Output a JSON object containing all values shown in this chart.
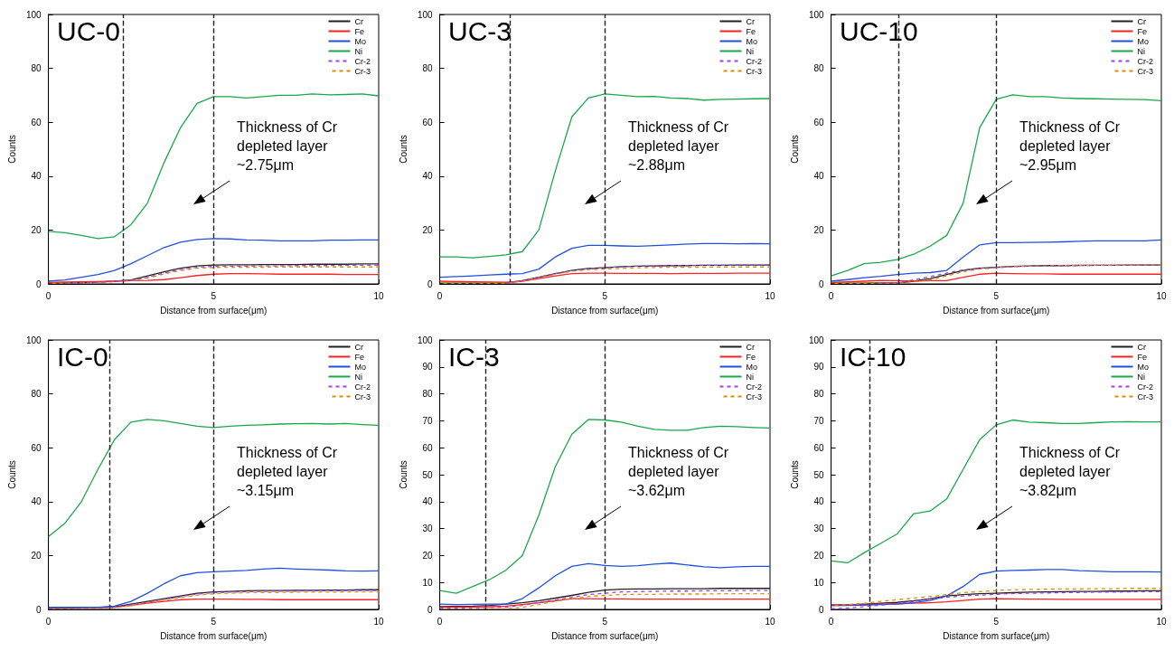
{
  "chart_data": [
    {
      "type": "line",
      "title": "UC-0",
      "xlabel": "Distance from surface(μm)",
      "ylabel": "Counts",
      "xlim": [
        0,
        10
      ],
      "xticks": [
        0,
        5,
        10
      ],
      "ylim": [
        0,
        100
      ],
      "yticks": [
        0,
        20,
        40,
        60,
        80,
        100
      ],
      "grid": false,
      "legend": "top right",
      "marker": "none",
      "line_style": "solid",
      "x": [
        0,
        0.5,
        1,
        1.5,
        2,
        2.5,
        3,
        3.5,
        4,
        4.5,
        5,
        5.5,
        6,
        6.5,
        7,
        7.5,
        8,
        8.5,
        9,
        9.5,
        10
      ],
      "series": [
        {
          "name": "Cr",
          "color": "#222222",
          "values": [
            0.3,
            0.4,
            0.5,
            0.7,
            1,
            1.5,
            3,
            4.5,
            5.8,
            6.7,
            7,
            7.1,
            7.1,
            7.2,
            7.2,
            7.2,
            7.3,
            7.3,
            7.3,
            7.4,
            7.4
          ]
        },
        {
          "name": "Fe",
          "color": "#ff2020",
          "values": [
            0.5,
            0.7,
            0.8,
            0.9,
            1,
            1.2,
            1.3,
            1.6,
            2.3,
            3.1,
            3.6,
            3.8,
            3.8,
            3.7,
            3.6,
            3.6,
            3.6,
            3.6,
            3.5,
            3.5,
            3.5
          ]
        },
        {
          "name": "Mo",
          "color": "#2050e0",
          "values": [
            1,
            1.5,
            2.5,
            3.5,
            5,
            7.5,
            10.5,
            13.5,
            15.5,
            16.5,
            16.8,
            16.7,
            16.3,
            16.2,
            16,
            16,
            16,
            16.2,
            16.2,
            16.3,
            16.3
          ]
        },
        {
          "name": "Ni",
          "color": "#1aa84a",
          "values": [
            19.5,
            19,
            18,
            16.8,
            17.5,
            22,
            30,
            45,
            58,
            67,
            69.5,
            69.5,
            69,
            69.5,
            70,
            70,
            70.5,
            70.2,
            70.3,
            70.5,
            69.8
          ]
        },
        {
          "name": "Cr-2",
          "color": "#a040f0",
          "line_style": "dashed",
          "values": [
            null,
            0.4,
            0.5,
            0.6,
            0.9,
            1.3,
            2.5,
            4,
            5.3,
            6.2,
            6.5,
            6.6,
            6.6,
            6.7,
            6.7,
            6.8,
            6.8,
            6.8,
            6.9,
            6.9,
            6.9
          ]
        },
        {
          "name": "Cr-3",
          "color": "#d89000",
          "line_style": "dashed",
          "values": [
            0.2,
            0.3,
            0.4,
            0.5,
            0.8,
            1.2,
            2.2,
            3.7,
            5,
            5.8,
            6.1,
            6.2,
            6.2,
            6.2,
            6.3,
            6.3,
            6.3,
            6.3,
            6.3,
            6.3,
            6.3
          ]
        }
      ],
      "ref_lines": [
        {
          "axis": "x",
          "value": 2.25,
          "color": "#222222",
          "line_style": "dashed"
        },
        {
          "axis": "x",
          "value": 5,
          "color": "#222222",
          "line_style": "dashed"
        }
      ],
      "annotations": [
        "Thickness of Cr\ndepleted layer\n~2.75μm"
      ]
    },
    {
      "type": "line",
      "title": "UC-3",
      "xlabel": "Distance from surface(μm)",
      "ylabel": "Counts",
      "xlim": [
        0,
        10
      ],
      "xticks": [
        0,
        5,
        10
      ],
      "ylim": [
        0,
        100
      ],
      "yticks": [
        0,
        20,
        40,
        60,
        80,
        100
      ],
      "grid": false,
      "legend": "top right",
      "marker": "none",
      "line_style": "solid",
      "x": [
        0,
        0.5,
        1,
        1.5,
        2,
        2.5,
        3,
        3.5,
        4,
        4.5,
        5,
        5.5,
        6,
        6.5,
        7,
        7.5,
        8,
        8.5,
        9,
        9.5,
        10
      ],
      "series": [
        {
          "name": "Cr",
          "color": "#222222",
          "values": [
            0.3,
            0.3,
            0.3,
            0.3,
            0.3,
            1.2,
            2.5,
            3.8,
            5,
            5.7,
            6,
            6.4,
            6.6,
            6.7,
            6.8,
            6.8,
            6.9,
            6.9,
            7,
            7,
            7
          ]
        },
        {
          "name": "Fe",
          "color": "#ff2020",
          "values": [
            1,
            0.9,
            0.8,
            0.7,
            0.6,
            1,
            2,
            3,
            3.8,
            4,
            4,
            3.9,
            3.9,
            3.9,
            3.8,
            3.9,
            3.9,
            3.9,
            4,
            4,
            4
          ]
        },
        {
          "name": "Mo",
          "color": "#2050e0",
          "values": [
            2.5,
            2.7,
            3,
            3.3,
            3.6,
            3.8,
            5.5,
            10,
            13.2,
            14.3,
            14.3,
            14.1,
            14,
            14.2,
            14.5,
            14.8,
            15,
            15,
            14.9,
            15,
            14.9
          ]
        },
        {
          "name": "Ni",
          "color": "#1aa84a",
          "values": [
            10,
            10,
            9.7,
            10.2,
            10.8,
            12,
            20,
            42,
            62,
            69,
            70.5,
            70,
            69.5,
            69.6,
            69,
            68.8,
            68.2,
            68.5,
            68.6,
            68.7,
            68.8
          ]
        },
        {
          "name": "Cr-2",
          "color": "#a040f0",
          "line_style": "dashed",
          "values": [
            null,
            null,
            null,
            null,
            0.3,
            1.2,
            2.5,
            3.8,
            5,
            5.7,
            6,
            6.4,
            6.6,
            6.7,
            6.8,
            6.8,
            6.9,
            6.9,
            7,
            7,
            7
          ]
        },
        {
          "name": "Cr-3",
          "color": "#d89000",
          "line_style": "dashed",
          "values": [
            0.2,
            0.2,
            0.2,
            0.2,
            0.2,
            1,
            2.3,
            3.6,
            4.7,
            5.3,
            5.5,
            5.8,
            6,
            6.1,
            6.2,
            6.2,
            6.2,
            6.3,
            6.3,
            6.3,
            6.3
          ]
        }
      ],
      "ref_lines": [
        {
          "axis": "x",
          "value": 2.12,
          "color": "#222222",
          "line_style": "dashed"
        },
        {
          "axis": "x",
          "value": 5,
          "color": "#222222",
          "line_style": "dashed"
        }
      ],
      "annotations": [
        "Thickness of Cr\ndepleted layer\n~2.88μm"
      ]
    },
    {
      "type": "line",
      "title": "UC-10",
      "xlabel": "Distance from surface(μm)",
      "ylabel": "Counts",
      "xlim": [
        0,
        10
      ],
      "xticks": [
        0,
        5,
        10
      ],
      "ylim": [
        0,
        100
      ],
      "yticks": [
        0,
        20,
        40,
        60,
        80,
        100
      ],
      "grid": false,
      "legend": "top right",
      "marker": "none",
      "line_style": "solid",
      "x": [
        0,
        0.5,
        1,
        1.5,
        2,
        2.5,
        3,
        3.5,
        4,
        4.5,
        5,
        5.5,
        6,
        6.5,
        7,
        7.5,
        8,
        8.5,
        9,
        9.5,
        10
      ],
      "series": [
        {
          "name": "Cr",
          "color": "#222222",
          "values": [
            0.3,
            0.3,
            0.3,
            0.4,
            0.4,
            1,
            2,
            3.5,
            5,
            5.8,
            6.2,
            6.5,
            6.7,
            6.8,
            6.8,
            6.9,
            6.9,
            6.9,
            7,
            7,
            7
          ]
        },
        {
          "name": "Fe",
          "color": "#ff2020",
          "values": [
            0.5,
            0.8,
            1,
            1.3,
            1.2,
            1,
            1.2,
            1.2,
            2.5,
            3.6,
            4,
            3.8,
            3.7,
            3.7,
            3.6,
            3.6,
            3.6,
            3.6,
            3.6,
            3.6,
            3.6
          ]
        },
        {
          "name": "Mo",
          "color": "#2050e0",
          "values": [
            1,
            1.6,
            2.3,
            2.8,
            3.5,
            4,
            4.2,
            5,
            10,
            14.5,
            15.3,
            15.3,
            15.4,
            15.5,
            15.6,
            15.8,
            16,
            16,
            16,
            16,
            16.3
          ]
        },
        {
          "name": "Ni",
          "color": "#1aa84a",
          "values": [
            3,
            5,
            7.5,
            8,
            9,
            11,
            14,
            18,
            30,
            58,
            68.5,
            70.2,
            69.5,
            69.5,
            69,
            68.8,
            68.7,
            68.6,
            68.5,
            68.4,
            68
          ]
        },
        {
          "name": "Cr-2",
          "color": "#a040f0",
          "line_style": "dashed",
          "values": [
            null,
            null,
            null,
            0.4,
            0.5,
            1.5,
            2.7,
            4,
            5.2,
            5.8,
            6.1,
            6.4,
            6.6,
            6.7,
            6.8,
            6.8,
            6.9,
            6.9,
            6.9,
            7,
            7
          ]
        },
        {
          "name": "Cr-3",
          "color": "#d89000",
          "line_style": "dashed",
          "values": [
            0.2,
            0.2,
            0.2,
            0.3,
            0.3,
            0.8,
            1.5,
            3,
            4.5,
            5.5,
            6,
            6.4,
            6.6,
            6.7,
            6.8,
            6.8,
            6.9,
            6.9,
            6.9,
            7,
            7
          ]
        }
      ],
      "ref_lines": [
        {
          "axis": "x",
          "value": 2.05,
          "color": "#222222",
          "line_style": "dashed"
        },
        {
          "axis": "x",
          "value": 5,
          "color": "#222222",
          "line_style": "dashed"
        }
      ],
      "annotations": [
        "Thickness of Cr\ndepleted layer\n~2.95μm"
      ]
    },
    {
      "type": "line",
      "title": "IC-0",
      "xlabel": "Distance from surface(μm)",
      "ylabel": "Counts",
      "xlim": [
        0,
        10
      ],
      "xticks": [
        0,
        5,
        10
      ],
      "ylim": [
        0,
        100
      ],
      "yticks": [
        0,
        20,
        40,
        60,
        80,
        100
      ],
      "grid": false,
      "legend": "top right",
      "marker": "none",
      "line_style": "solid",
      "x": [
        0,
        0.5,
        1,
        1.5,
        2,
        2.5,
        3,
        3.5,
        4,
        4.5,
        5,
        5.5,
        6,
        6.5,
        7,
        7.5,
        8,
        8.5,
        9,
        9.5,
        10
      ],
      "series": [
        {
          "name": "Cr",
          "color": "#222222",
          "values": [
            0.5,
            0.5,
            0.6,
            0.6,
            1,
            2,
            3,
            4,
            5,
            6,
            6.5,
            6.7,
            6.9,
            7,
            7,
            7.1,
            7.1,
            7.2,
            7.2,
            7.3,
            7.3
          ]
        },
        {
          "name": "Fe",
          "color": "#ff2020",
          "values": [
            null,
            null,
            null,
            null,
            0.8,
            1.5,
            2.3,
            3,
            3.6,
            3.8,
            3.8,
            3.8,
            3.7,
            3.7,
            3.6,
            3.6,
            3.6,
            3.6,
            3.6,
            3.6,
            3.6
          ]
        },
        {
          "name": "Mo",
          "color": "#2050e0",
          "values": [
            0.8,
            0.8,
            0.8,
            0.8,
            1.2,
            3,
            6,
            9.5,
            12.5,
            13.6,
            14,
            14.2,
            14.5,
            15,
            15.3,
            15,
            14.8,
            14.6,
            14.3,
            14.2,
            14.3
          ]
        },
        {
          "name": "Ni",
          "color": "#1aa84a",
          "values": [
            27,
            32,
            40,
            52,
            63,
            69.5,
            70.5,
            70,
            69,
            68,
            67.5,
            68,
            68.3,
            68.5,
            68.8,
            68.9,
            69,
            68.8,
            69,
            68.6,
            68.3
          ]
        },
        {
          "name": "Cr-2",
          "color": "#a040f0",
          "line_style": "dashed",
          "values": [
            0.4,
            0.4,
            0.4,
            0.5,
            0.8,
            1.7,
            2.7,
            3.7,
            4.7,
            5.7,
            6.2,
            6.4,
            6.6,
            6.7,
            6.8,
            6.8,
            6.9,
            6.9,
            7,
            7,
            7
          ]
        },
        {
          "name": "Cr-3",
          "color": "#d89000",
          "line_style": "dashed",
          "values": [
            0.3,
            0.3,
            0.3,
            0.4,
            0.6,
            1.4,
            2.4,
            3.4,
            4.4,
            5.3,
            5.8,
            6,
            6.2,
            6.3,
            6.3,
            6.4,
            6.4,
            6.4,
            6.5,
            6.5,
            6.5
          ]
        }
      ],
      "ref_lines": [
        {
          "axis": "x",
          "value": 1.85,
          "color": "#222222",
          "line_style": "dashed"
        },
        {
          "axis": "x",
          "value": 5,
          "color": "#222222",
          "line_style": "dashed"
        }
      ],
      "annotations": [
        "Thickness of Cr\ndepleted layer\n~3.15μm"
      ]
    },
    {
      "type": "line",
      "title": "IC-3",
      "xlabel": "Distance from surface(μm)",
      "ylabel": "Counts",
      "xlim": [
        0,
        10
      ],
      "xticks": [
        0,
        5,
        10
      ],
      "ylim": [
        0,
        100
      ],
      "yticks": [
        0,
        10,
        20,
        30,
        40,
        50,
        60,
        70,
        80,
        90,
        100
      ],
      "grid": false,
      "legend": "top right",
      "marker": "none",
      "line_style": "solid",
      "x": [
        0,
        0.5,
        1,
        1.5,
        2,
        2.5,
        3,
        3.5,
        4,
        4.5,
        5,
        5.5,
        6,
        6.5,
        7,
        7.5,
        8,
        8.5,
        9,
        9.5,
        10
      ],
      "series": [
        {
          "name": "Cr",
          "color": "#222222",
          "values": [
            1,
            1.1,
            1.2,
            1.5,
            2,
            2.5,
            3.2,
            4.2,
            5.2,
            6.3,
            7.2,
            7.5,
            7.6,
            7.6,
            7.7,
            7.7,
            7.7,
            7.8,
            7.8,
            7.8,
            7.8
          ]
        },
        {
          "name": "Fe",
          "color": "#ff2020",
          "values": [
            0.8,
            0.9,
            0.9,
            1,
            1.2,
            1.8,
            2.5,
            3.2,
            4,
            4,
            3.9,
            3.9,
            3.8,
            3.8,
            3.8,
            3.8,
            3.8,
            3.8,
            3.8,
            3.8,
            3.8
          ]
        },
        {
          "name": "Mo",
          "color": "#2050e0",
          "values": [
            2,
            1.8,
            1.9,
            2,
            2,
            4,
            8,
            12.5,
            16,
            17,
            16.3,
            16,
            16.2,
            16.8,
            17.2,
            16.5,
            15.8,
            15.5,
            15.8,
            16,
            16
          ]
        },
        {
          "name": "Ni",
          "color": "#1aa84a",
          "values": [
            7,
            6,
            8.5,
            11,
            14.5,
            20,
            35,
            53,
            65,
            70.5,
            70.3,
            69.5,
            68,
            66.8,
            66.5,
            66.5,
            67.5,
            68,
            67.8,
            67.5,
            67.3
          ]
        },
        {
          "name": "Cr-2",
          "color": "#a040f0",
          "line_style": "dashed",
          "values": [
            0.5,
            0.5,
            0.6,
            0.7,
            0.8,
            1.5,
            2.5,
            3.5,
            4.5,
            5.5,
            6,
            6.5,
            6.6,
            6.7,
            6.8,
            6.8,
            6.9,
            6.9,
            7,
            7,
            7
          ]
        },
        {
          "name": "Cr-3",
          "color": "#d89000",
          "line_style": "dashed",
          "values": [
            0.2,
            0.2,
            0.2,
            0.3,
            0.3,
            0.8,
            1.8,
            3,
            4,
            4.8,
            5.2,
            5.5,
            5.6,
            5.6,
            5.7,
            5.7,
            5.7,
            5.8,
            5.8,
            5.8,
            5.8
          ]
        }
      ],
      "ref_lines": [
        {
          "axis": "x",
          "value": 1.38,
          "color": "#222222",
          "line_style": "dashed"
        },
        {
          "axis": "x",
          "value": 5,
          "color": "#222222",
          "line_style": "dashed"
        }
      ],
      "annotations": [
        "Thickness of Cr\ndepleted layer\n~3.62μm"
      ]
    },
    {
      "type": "line",
      "title": "IC-10",
      "xlabel": "Distance from surface(μm)",
      "ylabel": "Counts",
      "xlim": [
        0,
        10
      ],
      "xticks": [
        0,
        5,
        10
      ],
      "ylim": [
        0,
        100
      ],
      "yticks": [
        0,
        10,
        20,
        30,
        40,
        50,
        60,
        70,
        80,
        90,
        100
      ],
      "grid": false,
      "legend": "top right",
      "marker": "none",
      "line_style": "solid",
      "x": [
        0,
        0.5,
        1,
        1.5,
        2,
        2.5,
        3,
        3.5,
        4,
        4.5,
        5,
        5.5,
        6,
        6.5,
        7,
        7.5,
        8,
        8.5,
        9,
        9.5,
        10
      ],
      "series": [
        {
          "name": "Cr",
          "color": "#222222",
          "values": [
            1.5,
            1.6,
            2,
            2.3,
            2.6,
            3.2,
            4,
            5,
            5.5,
            5.8,
            6,
            6.2,
            6.4,
            6.5,
            6.6,
            6.7,
            6.7,
            6.8,
            6.8,
            6.9,
            6.9
          ]
        },
        {
          "name": "Fe",
          "color": "#ff2020",
          "values": [
            1.8,
            1.8,
            1.9,
            2,
            2.1,
            2.3,
            2.5,
            2.8,
            3.3,
            3.8,
            4,
            3.9,
            3.8,
            3.8,
            3.7,
            3.7,
            3.7,
            3.7,
            3.7,
            3.7,
            3.7
          ]
        },
        {
          "name": "Mo",
          "color": "#2050e0",
          "values": [
            1.5,
            1.5,
            1.6,
            1.8,
            2,
            2.5,
            3.3,
            5,
            8.5,
            13,
            14.2,
            14.5,
            14.6,
            14.8,
            14.8,
            14.4,
            14.2,
            14,
            14,
            14,
            13.9
          ]
        },
        {
          "name": "Ni",
          "color": "#1aa84a",
          "values": [
            18,
            17.3,
            21,
            24.5,
            28,
            35.5,
            36.5,
            41,
            52,
            63,
            68.5,
            70.3,
            69.5,
            69.3,
            69,
            69,
            69.3,
            69.6,
            69.7,
            69.6,
            69.6
          ]
        },
        {
          "name": "Cr-2",
          "color": "#a040f0",
          "line_style": "dashed",
          "values": [
            0.3,
            0.5,
            1,
            1.6,
            2.2,
            3,
            3.8,
            4.5,
            5,
            5.3,
            5.6,
            5.9,
            6,
            6.1,
            6.2,
            6.3,
            6.4,
            6.4,
            6.5,
            6.6,
            6.6
          ]
        },
        {
          "name": "Cr-3",
          "color": "#d89000",
          "line_style": "dashed",
          "values": [
            1.5,
            1.8,
            2.2,
            3,
            3.6,
            4.2,
            4.8,
            5.5,
            6.2,
            6.6,
            7,
            7.3,
            7.4,
            7.5,
            7.6,
            7.6,
            7.7,
            7.7,
            7.8,
            7.8,
            7.8
          ]
        }
      ],
      "ref_lines": [
        {
          "axis": "x",
          "value": 1.18,
          "color": "#222222",
          "line_style": "dashed"
        },
        {
          "axis": "x",
          "value": 5,
          "color": "#222222",
          "line_style": "dashed"
        }
      ],
      "annotations": [
        "Thickness of Cr\ndepleted layer\n~3.82μm"
      ]
    }
  ]
}
